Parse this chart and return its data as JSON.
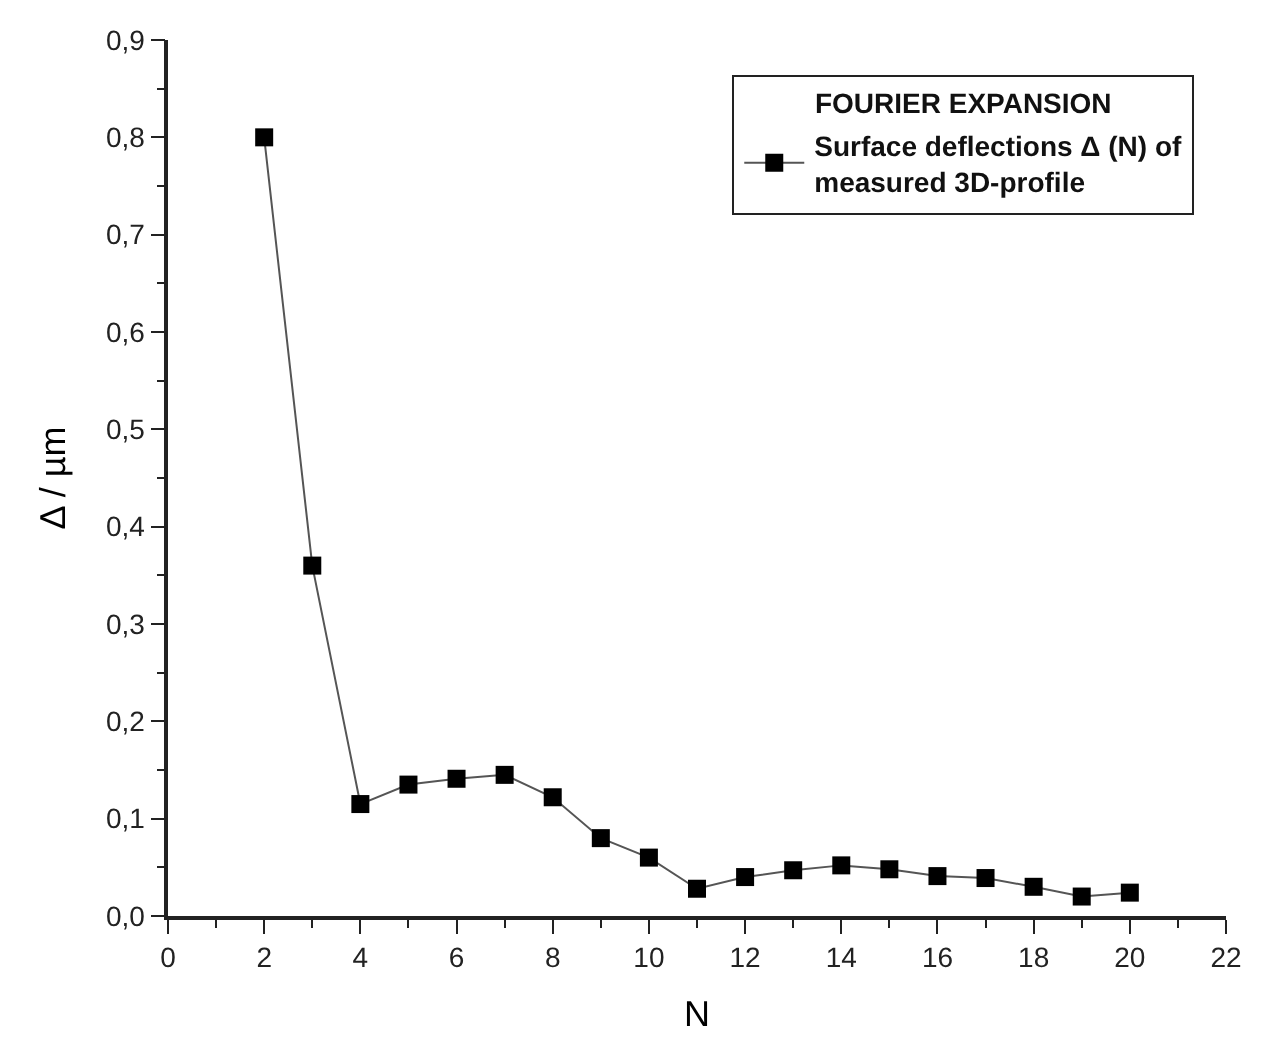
{
  "chart_data": {
    "type": "line",
    "xlabel": "N",
    "ylabel": "Δ / µm",
    "legend_title": "FOURIER EXPANSION",
    "x": [
      2,
      3,
      4,
      5,
      6,
      7,
      8,
      9,
      10,
      11,
      12,
      13,
      14,
      15,
      16,
      17,
      18,
      19,
      20
    ],
    "series": [
      {
        "name": "Surface deflections Δ (N) of\nmeasured 3D-profile",
        "color": "#000000",
        "values": [
          0.8,
          0.36,
          0.115,
          0.135,
          0.141,
          0.145,
          0.122,
          0.08,
          0.06,
          0.028,
          0.04,
          0.047,
          0.052,
          0.048,
          0.041,
          0.039,
          0.03,
          0.02,
          0.024
        ]
      }
    ],
    "xlim": [
      0,
      22
    ],
    "xticks": [
      0,
      2,
      4,
      6,
      8,
      10,
      12,
      14,
      16,
      18,
      20,
      22
    ],
    "ylim": [
      0,
      0.9
    ],
    "yticks": [
      {
        "value": 0,
        "label": "0,0"
      },
      {
        "value": 0.1,
        "label": "0,1"
      },
      {
        "value": 0.2,
        "label": "0,2"
      },
      {
        "value": 0.3,
        "label": "0,3"
      },
      {
        "value": 0.4,
        "label": "0,4"
      },
      {
        "value": 0.5,
        "label": "0,5"
      },
      {
        "value": 0.6,
        "label": "0,6"
      },
      {
        "value": 0.7,
        "label": "0,7"
      },
      {
        "value": 0.8,
        "label": "0,8"
      },
      {
        "value": 0.9,
        "label": "0,9"
      }
    ],
    "legend": "top right",
    "marker": "square",
    "line_style": "solid"
  }
}
